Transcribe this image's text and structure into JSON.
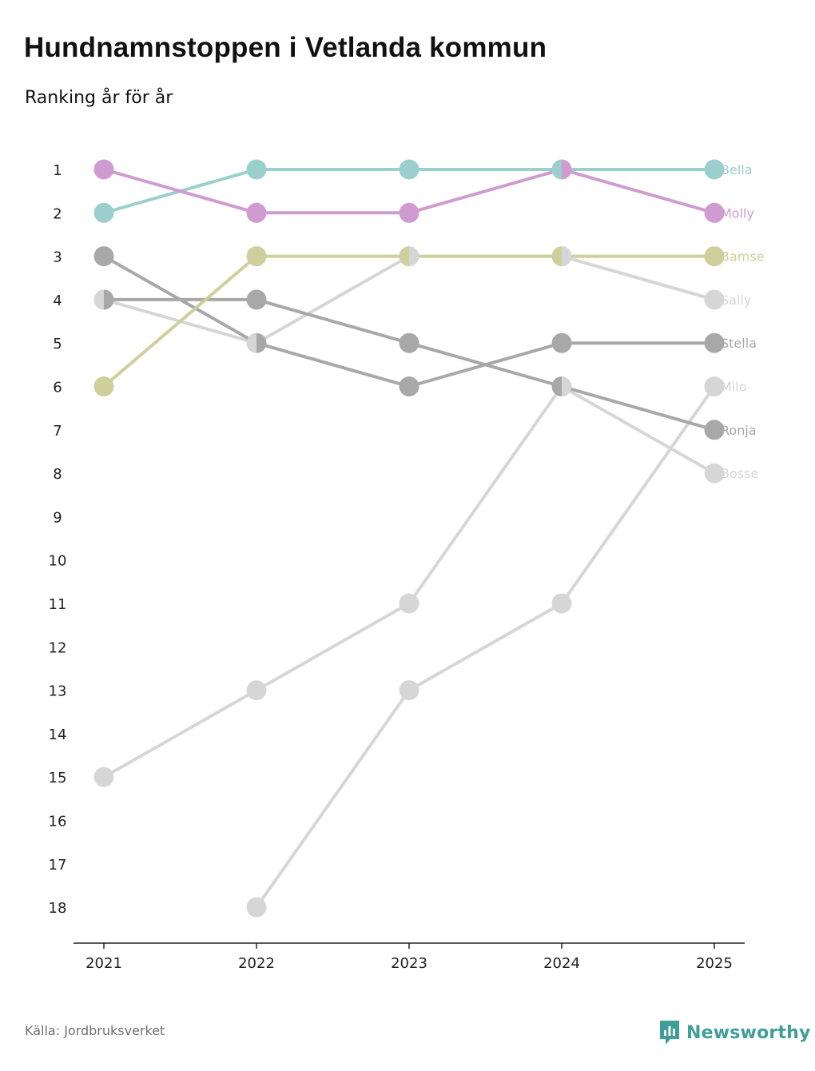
{
  "title": "Hundnamnstoppen i Vetlanda kommun",
  "subtitle": "Ranking år för år",
  "source": "Källa: Jordbruksverket",
  "brand": "Newsworthy",
  "colors": {
    "teal": "#9bcfcd",
    "purple": "#cf9bd0",
    "olive": "#cfcf9b",
    "darkgray": "#a8a8a8",
    "lightgray": "#d6d6d6",
    "axis": "#222222",
    "brand": "#3f9e97"
  },
  "chart_data": {
    "type": "line",
    "title": "Hundnamnstoppen i Vetlanda kommun",
    "subtitle": "Ranking år för år",
    "xlabel": "",
    "ylabel": "",
    "categories": [
      "2021",
      "2022",
      "2023",
      "2024",
      "2025"
    ],
    "ylim": [
      1,
      18
    ],
    "y_inverted": true,
    "y_ticks": [
      "1",
      "2",
      "3",
      "4",
      "5",
      "6",
      "7",
      "8",
      "9",
      "10",
      "11",
      "12",
      "13",
      "14",
      "15",
      "16",
      "17",
      "18"
    ],
    "series": [
      {
        "name": "Bella",
        "color": "#9bcfcd",
        "values": [
          2,
          1,
          1,
          1,
          1
        ]
      },
      {
        "name": "Molly",
        "color": "#cf9bd0",
        "values": [
          1,
          2,
          2,
          1,
          2
        ]
      },
      {
        "name": "Bamse",
        "color": "#cfcf9b",
        "values": [
          6,
          3,
          3,
          3,
          3
        ]
      },
      {
        "name": "Sally",
        "color": "#d6d6d6",
        "values": [
          4,
          5,
          3,
          3,
          4
        ]
      },
      {
        "name": "Stella",
        "color": "#a8a8a8",
        "values": [
          3,
          5,
          6,
          5,
          5
        ]
      },
      {
        "name": "Milo",
        "color": "#d6d6d6",
        "values": [
          null,
          18,
          13,
          11,
          6
        ]
      },
      {
        "name": "Ronja",
        "color": "#a8a8a8",
        "values": [
          4,
          4,
          5,
          6,
          7
        ]
      },
      {
        "name": "Bosse",
        "color": "#d6d6d6",
        "values": [
          15,
          13,
          11,
          6,
          8
        ]
      }
    ]
  }
}
